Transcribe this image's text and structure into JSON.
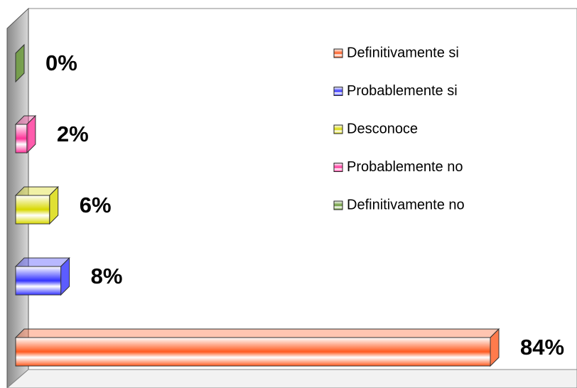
{
  "chart_data": {
    "type": "bar",
    "orientation": "horizontal",
    "categories": [
      "Definitivamente si",
      "Probablemente si",
      "Desconoce",
      "Probablemente no",
      "Definitivamente no"
    ],
    "values": [
      84,
      8,
      6,
      2,
      0
    ],
    "value_labels": [
      "84%",
      "8%",
      "6%",
      "2%",
      "0%"
    ],
    "colors": [
      "#ff5a1f",
      "#3333ff",
      "#d8d800",
      "#ff3399",
      "#669933"
    ],
    "legend": "top-right"
  }
}
